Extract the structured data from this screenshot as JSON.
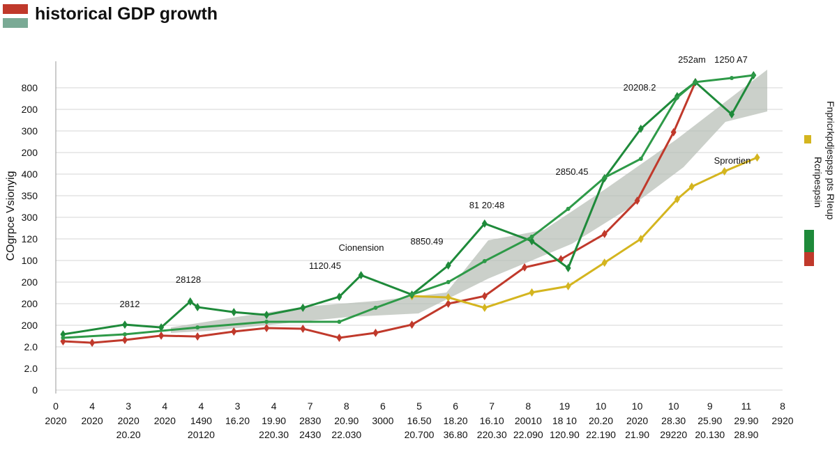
{
  "chart_data": {
    "type": "line",
    "title": "historical GDP growth",
    "y_label": "COgrpce Vsionyig",
    "xlim": [
      0,
      20
    ],
    "categories": [
      "0",
      "4",
      "3",
      "4",
      "4",
      "3",
      "4",
      "7",
      "8",
      "6",
      "5",
      "6",
      "7",
      "8",
      "19",
      "10",
      "10",
      "10",
      "9",
      "11",
      "8"
    ],
    "categories_line2": [
      "2020",
      "2020",
      "2020",
      "2020",
      "1490",
      "16.20",
      "19.90",
      "2830",
      "20.90",
      "3000",
      "16.50",
      "18.20",
      "16.10",
      "20010",
      "18 10",
      "20.20",
      "2020",
      "28.30",
      "25.90",
      "29.90",
      "2920"
    ],
    "categories_line3": [
      null,
      null,
      "20.20",
      null,
      "20120",
      null,
      "220.30",
      "2430",
      "22.030",
      null,
      "20.700",
      "36.80",
      "220.30",
      "22.090",
      "120.90",
      "22.190",
      "21.90",
      "29220",
      "20.130",
      "28.90",
      null
    ],
    "ylim": [
      0,
      15.2
    ],
    "yticks": [
      {
        "value": 0,
        "label": "0"
      },
      {
        "value": 1,
        "label": "2.0"
      },
      {
        "value": 2,
        "label": "2.0"
      },
      {
        "value": 3,
        "label": "200"
      },
      {
        "value": 4,
        "label": "200"
      },
      {
        "value": 5,
        "label": "200"
      },
      {
        "value": 6,
        "label": "100"
      },
      {
        "value": 7,
        "label": "120"
      },
      {
        "value": 8,
        "label": "300"
      },
      {
        "value": 9,
        "label": "350"
      },
      {
        "value": 10,
        "label": "400"
      },
      {
        "value": 11,
        "label": "200"
      },
      {
        "value": 12,
        "label": "300"
      },
      {
        "value": 13,
        "label": "200"
      },
      {
        "value": 14,
        "label": "800"
      }
    ],
    "grid": true,
    "series": [
      {
        "color": "#c0392b",
        "marker": "diamond",
        "x": [
          0.2,
          1.0,
          1.9,
          2.9,
          3.9,
          4.9,
          5.8,
          6.8,
          7.8,
          8.8,
          9.8,
          10.8,
          11.8,
          12.9,
          13.9,
          15.1,
          16.0,
          17.0,
          17.6
        ],
        "values": [
          2.26,
          2.19,
          2.32,
          2.52,
          2.48,
          2.71,
          2.87,
          2.84,
          2.42,
          2.65,
          3.03,
          4.0,
          4.35,
          5.68,
          6.06,
          7.23,
          8.77,
          11.94,
          14.26
        ]
      },
      {
        "color": "#d4b51f",
        "marker": "diamond",
        "x": [
          9.8,
          10.8,
          11.8,
          13.1,
          14.1,
          15.1,
          16.1,
          17.1,
          17.5,
          18.4,
          19.3
        ],
        "values": [
          4.35,
          4.29,
          3.81,
          4.52,
          4.81,
          5.9,
          7.0,
          8.84,
          9.42,
          10.13,
          10.77
        ]
      },
      {
        "color": "#1e8a3a",
        "marker": "diamond",
        "x": [
          0.2,
          1.9,
          2.9,
          3.7,
          3.9,
          4.9,
          5.8,
          6.8,
          7.8,
          8.4,
          9.8,
          10.8,
          11.8,
          13.1,
          14.1,
          15.1,
          16.1,
          17.1,
          17.6,
          18.6,
          19.2
        ],
        "values": [
          2.58,
          3.03,
          2.9,
          4.1,
          3.84,
          3.61,
          3.48,
          3.81,
          4.32,
          5.32,
          4.42,
          5.77,
          7.71,
          6.9,
          5.65,
          9.81,
          12.1,
          13.61,
          14.26,
          12.77,
          14.58
        ]
      },
      {
        "color": "#2e9a48",
        "marker": "dot",
        "x": [
          0.2,
          1.9,
          3.9,
          5.8,
          7.8,
          8.8,
          9.8,
          10.8,
          11.8,
          13.1,
          14.1,
          15.1,
          16.1,
          17.1,
          17.6,
          18.6,
          19.2
        ],
        "values": [
          2.42,
          2.58,
          2.9,
          3.16,
          3.16,
          3.81,
          4.42,
          5.0,
          5.97,
          7.1,
          8.39,
          9.84,
          10.71,
          13.55,
          14.26,
          14.45,
          14.58
        ]
      }
    ],
    "annotations": [
      "2812",
      "28128",
      "1120.45",
      "Cionension",
      "8850.49",
      "81 20:48",
      "2850.45",
      "20208.2",
      "252am",
      "1250 A7",
      "Sprortien"
    ],
    "legend": [
      "Rcripespsin",
      "Fnpricrkpdjespsp pts RIeup"
    ]
  }
}
